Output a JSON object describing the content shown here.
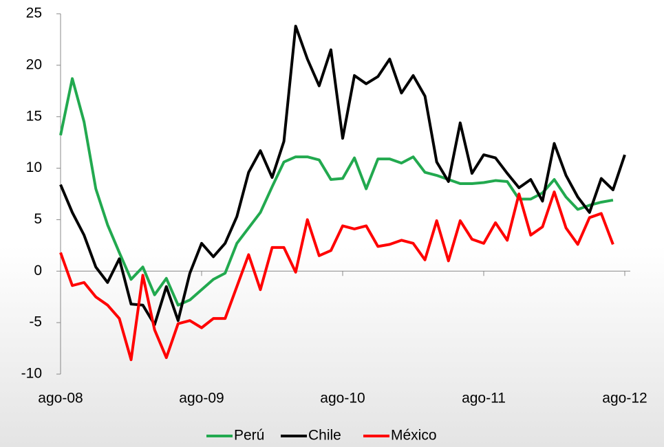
{
  "chart_data": {
    "type": "line",
    "categories": [
      "ago-08",
      null,
      null,
      null,
      null,
      null,
      null,
      null,
      null,
      null,
      null,
      null,
      "ago-09",
      null,
      null,
      null,
      null,
      null,
      null,
      null,
      null,
      null,
      null,
      null,
      "ago-10",
      null,
      null,
      null,
      null,
      null,
      null,
      null,
      null,
      null,
      null,
      null,
      "ago-11",
      null,
      null,
      null,
      null,
      null,
      null,
      null,
      null,
      null,
      null,
      null,
      "ago-12"
    ],
    "series": [
      {
        "name": "Perú",
        "color": "#22a94f",
        "values": [
          13.2,
          18.7,
          14.5,
          8,
          4.5,
          1.8,
          -0.8,
          0.4,
          -2.3,
          -0.7,
          -3.3,
          -2.8,
          -1.8,
          -0.8,
          -0.2,
          2.7,
          4.2,
          5.7,
          8.2,
          10.6,
          11.1,
          11.1,
          10.8,
          8.9,
          9.0,
          11.0,
          8.0,
          10.9,
          10.9,
          10.5,
          11.1,
          9.6,
          9.3,
          8.9,
          8.5,
          8.5,
          8.6,
          8.8,
          8.7,
          7.0,
          7.0,
          7.6,
          8.9,
          7.2,
          6.0,
          6.4,
          6.7,
          6.9,
          null
        ]
      },
      {
        "name": "Chile",
        "color": "#000000",
        "values": [
          8.4,
          5.7,
          3.5,
          0.4,
          -1.1,
          1.2,
          -3.2,
          -3.3,
          -5.2,
          -1.5,
          -4.8,
          -0.2,
          2.7,
          1.4,
          2.7,
          5.3,
          9.6,
          11.7,
          9.1,
          12.6,
          23.8,
          20.6,
          18.0,
          21.5,
          12.9,
          19.0,
          18.2,
          18.9,
          20.6,
          17.3,
          19.0,
          17.0,
          10.6,
          8.7,
          14.4,
          9.5,
          11.3,
          11.0,
          9.5,
          8.1,
          8.9,
          6.8,
          12.4,
          9.3,
          7.2,
          5.7,
          9.0,
          7.9,
          11.3
        ]
      },
      {
        "name": "México",
        "color": "#ff0000",
        "values": [
          1.8,
          -1.4,
          -1.1,
          -2.5,
          -3.3,
          -4.6,
          -8.6,
          -0.4,
          -5.7,
          -8.4,
          -5.1,
          -4.8,
          -5.5,
          -4.6,
          -4.6,
          -1.5,
          1.6,
          -1.8,
          2.3,
          2.3,
          -0.1,
          5.0,
          1.5,
          2.0,
          4.4,
          4.1,
          4.4,
          2.4,
          2.6,
          3.0,
          2.7,
          1.1,
          4.9,
          1.0,
          4.9,
          3.1,
          2.7,
          4.7,
          3.0,
          7.5,
          3.5,
          4.3,
          7.7,
          4.2,
          2.6,
          5.2,
          5.6,
          2.6,
          null
        ]
      }
    ],
    "ylim": [
      -10,
      25
    ],
    "yticks": [
      -10,
      -5,
      0,
      5,
      10,
      15,
      20,
      25
    ],
    "legend": "bottom"
  }
}
